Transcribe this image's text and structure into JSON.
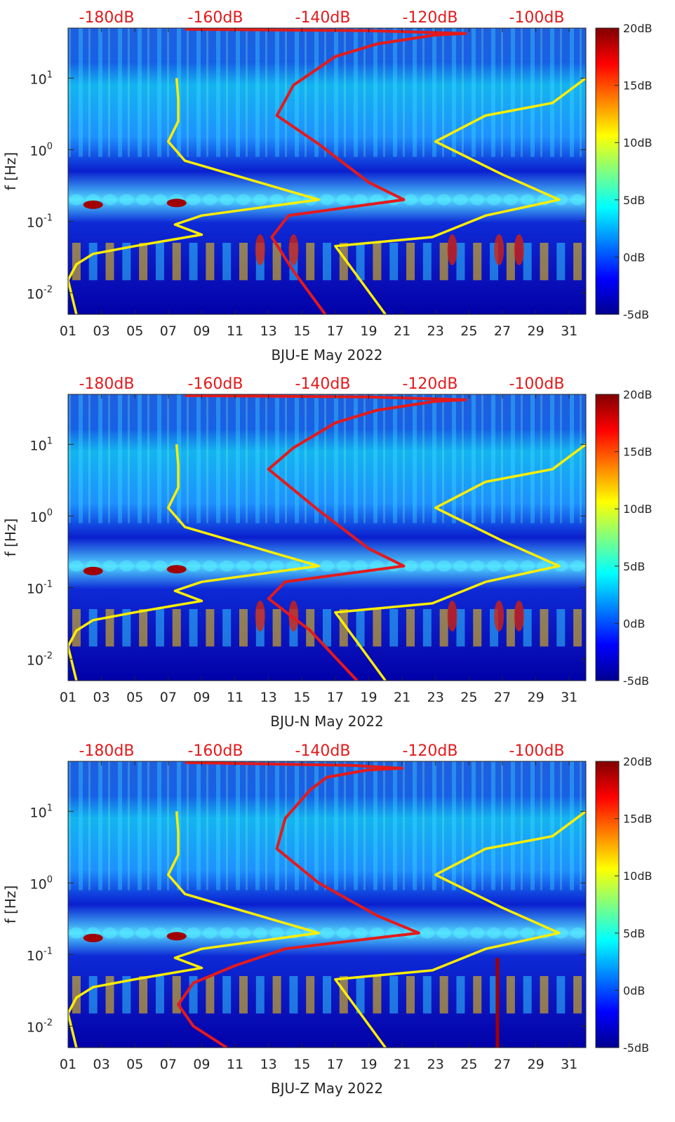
{
  "chart_data": [
    {
      "type": "heatmap",
      "title": "",
      "xlabel": "BJU-E May 2022",
      "ylabel": "f [Hz]",
      "xlim": [
        1,
        32
      ],
      "ylim": [
        0.005,
        50
      ],
      "yscale": "log",
      "xticks": [
        "01",
        "03",
        "05",
        "07",
        "09",
        "11",
        "13",
        "15",
        "17",
        "19",
        "21",
        "23",
        "25",
        "27",
        "29",
        "31"
      ],
      "yticks": [
        {
          "value": 0.01,
          "base": "10",
          "exp": "-2"
        },
        {
          "value": 0.1,
          "base": "10",
          "exp": "-1"
        },
        {
          "value": 1,
          "base": "10",
          "exp": "0"
        },
        {
          "value": 10,
          "base": "10",
          "exp": "1"
        }
      ],
      "top_axis_labels": [
        "-180dB",
        "-160dB",
        "-140dB",
        "-120dB",
        "-100dB"
      ],
      "colorbar": {
        "labels": [
          "20dB",
          "15dB",
          "10dB",
          "5dB",
          "0dB",
          "-5dB"
        ],
        "range": [
          -5,
          20
        ]
      },
      "series": [
        {
          "name": "red-psd-curve",
          "color": "#e31a1c",
          "points": [
            [
              16.4,
              0.005
            ],
            [
              14.5,
              0.02
            ],
            [
              13.2,
              0.06
            ],
            [
              14.2,
              0.12
            ],
            [
              21.1,
              0.2
            ],
            [
              19.0,
              0.35
            ],
            [
              16.0,
              1.2
            ],
            [
              13.5,
              3.0
            ],
            [
              14.5,
              8.0
            ],
            [
              17.0,
              20
            ],
            [
              19.5,
              30
            ],
            [
              23.0,
              40
            ],
            [
              24.8,
              42
            ],
            [
              19.0,
              46
            ],
            [
              8.0,
              48
            ]
          ]
        },
        {
          "name": "yellow-low-noise-model",
          "color": "#ffee00",
          "points": [
            [
              1.5,
              0.005
            ],
            [
              1.0,
              0.015
            ],
            [
              1.5,
              0.025
            ],
            [
              2.5,
              0.035
            ],
            [
              5.0,
              0.045
            ],
            [
              9.0,
              0.065
            ],
            [
              7.4,
              0.09
            ],
            [
              9.0,
              0.12
            ],
            [
              16.0,
              0.2
            ],
            [
              8.0,
              0.7
            ],
            [
              7.0,
              1.3
            ],
            [
              7.6,
              2.5
            ],
            [
              7.6,
              5.0
            ],
            [
              7.5,
              10.0
            ]
          ]
        },
        {
          "name": "yellow-high-noise-model",
          "color": "#ffee00",
          "points": [
            [
              20.0,
              0.005
            ],
            [
              17.0,
              0.045
            ],
            [
              22.8,
              0.06
            ],
            [
              26.0,
              0.12
            ],
            [
              30.4,
              0.2
            ],
            [
              27.0,
              0.45
            ],
            [
              23.0,
              1.3
            ],
            [
              26.0,
              3.0
            ],
            [
              30.0,
              4.5
            ],
            [
              32.0,
              10.0
            ]
          ]
        }
      ]
    },
    {
      "type": "heatmap",
      "title": "",
      "xlabel": "BJU-N May 2022",
      "ylabel": "f [Hz]",
      "xlim": [
        1,
        32
      ],
      "ylim": [
        0.005,
        50
      ],
      "yscale": "log",
      "xticks": [
        "01",
        "03",
        "05",
        "07",
        "09",
        "11",
        "13",
        "15",
        "17",
        "19",
        "21",
        "23",
        "25",
        "27",
        "29",
        "31"
      ],
      "yticks": [
        {
          "value": 0.01,
          "base": "10",
          "exp": "-2"
        },
        {
          "value": 0.1,
          "base": "10",
          "exp": "-1"
        },
        {
          "value": 1,
          "base": "10",
          "exp": "0"
        },
        {
          "value": 10,
          "base": "10",
          "exp": "1"
        }
      ],
      "top_axis_labels": [
        "-180dB",
        "-160dB",
        "-140dB",
        "-120dB",
        "-100dB"
      ],
      "colorbar": {
        "labels": [
          "20dB",
          "15dB",
          "10dB",
          "5dB",
          "0dB",
          "-5dB"
        ],
        "range": [
          -5,
          20
        ]
      },
      "series": [
        {
          "name": "red-psd-curve",
          "color": "#e31a1c",
          "points": [
            [
              18.3,
              0.005
            ],
            [
              15.5,
              0.025
            ],
            [
              13.0,
              0.07
            ],
            [
              14.0,
              0.12
            ],
            [
              21.1,
              0.2
            ],
            [
              19.0,
              0.35
            ],
            [
              16.0,
              1.2
            ],
            [
              13.0,
              4.5
            ],
            [
              14.5,
              9.0
            ],
            [
              17.0,
              20
            ],
            [
              19.5,
              30
            ],
            [
              23.0,
              40
            ],
            [
              24.8,
              42
            ],
            [
              19.0,
              46
            ],
            [
              8.0,
              48
            ]
          ]
        },
        {
          "name": "yellow-low-noise-model",
          "color": "#ffee00",
          "points": [
            [
              1.5,
              0.005
            ],
            [
              1.0,
              0.015
            ],
            [
              1.5,
              0.025
            ],
            [
              2.5,
              0.035
            ],
            [
              5.0,
              0.045
            ],
            [
              9.0,
              0.065
            ],
            [
              7.4,
              0.09
            ],
            [
              9.0,
              0.12
            ],
            [
              16.0,
              0.2
            ],
            [
              8.0,
              0.7
            ],
            [
              7.0,
              1.3
            ],
            [
              7.6,
              2.5
            ],
            [
              7.6,
              5.0
            ],
            [
              7.5,
              10.0
            ]
          ]
        },
        {
          "name": "yellow-high-noise-model",
          "color": "#ffee00",
          "points": [
            [
              20.0,
              0.005
            ],
            [
              17.0,
              0.045
            ],
            [
              22.8,
              0.06
            ],
            [
              26.0,
              0.12
            ],
            [
              30.4,
              0.2
            ],
            [
              27.0,
              0.45
            ],
            [
              23.0,
              1.3
            ],
            [
              26.0,
              3.0
            ],
            [
              30.0,
              4.5
            ],
            [
              32.0,
              10.0
            ]
          ]
        }
      ]
    },
    {
      "type": "heatmap",
      "title": "",
      "xlabel": "BJU-Z May 2022",
      "ylabel": "f [Hz]",
      "xlim": [
        1,
        32
      ],
      "ylim": [
        0.005,
        50
      ],
      "yscale": "log",
      "xticks": [
        "01",
        "03",
        "05",
        "07",
        "09",
        "11",
        "13",
        "15",
        "17",
        "19",
        "21",
        "23",
        "25",
        "27",
        "29",
        "31"
      ],
      "yticks": [
        {
          "value": 0.01,
          "base": "10",
          "exp": "-2"
        },
        {
          "value": 0.1,
          "base": "10",
          "exp": "-1"
        },
        {
          "value": 1,
          "base": "10",
          "exp": "0"
        },
        {
          "value": 10,
          "base": "10",
          "exp": "1"
        }
      ],
      "top_axis_labels": [
        "-180dB",
        "-160dB",
        "-140dB",
        "-120dB",
        "-100dB"
      ],
      "colorbar": {
        "labels": [
          "20dB",
          "15dB",
          "10dB",
          "5dB",
          "0dB",
          "-5dB"
        ],
        "range": [
          -5,
          20
        ]
      },
      "series": [
        {
          "name": "red-psd-curve",
          "color": "#e31a1c",
          "points": [
            [
              10.5,
              0.005
            ],
            [
              8.5,
              0.01
            ],
            [
              7.6,
              0.02
            ],
            [
              8.5,
              0.04
            ],
            [
              11.0,
              0.07
            ],
            [
              14.0,
              0.12
            ],
            [
              22.0,
              0.2
            ],
            [
              19.5,
              0.35
            ],
            [
              16.0,
              1.0
            ],
            [
              13.5,
              3.0
            ],
            [
              14.0,
              8.0
            ],
            [
              15.5,
              20
            ],
            [
              16.5,
              30
            ],
            [
              19.0,
              38
            ],
            [
              21.0,
              40
            ],
            [
              18.0,
              44
            ],
            [
              8.0,
              48
            ]
          ]
        },
        {
          "name": "yellow-low-noise-model",
          "color": "#ffee00",
          "points": [
            [
              1.5,
              0.005
            ],
            [
              1.0,
              0.015
            ],
            [
              1.5,
              0.025
            ],
            [
              2.5,
              0.035
            ],
            [
              5.0,
              0.045
            ],
            [
              9.0,
              0.065
            ],
            [
              7.4,
              0.09
            ],
            [
              9.0,
              0.12
            ],
            [
              16.0,
              0.2
            ],
            [
              8.0,
              0.7
            ],
            [
              7.0,
              1.3
            ],
            [
              7.6,
              2.5
            ],
            [
              7.6,
              5.0
            ],
            [
              7.5,
              10.0
            ]
          ]
        },
        {
          "name": "yellow-high-noise-model",
          "color": "#ffee00",
          "points": [
            [
              20.0,
              0.005
            ],
            [
              17.0,
              0.045
            ],
            [
              22.8,
              0.06
            ],
            [
              26.0,
              0.12
            ],
            [
              30.4,
              0.2
            ],
            [
              27.0,
              0.45
            ],
            [
              23.0,
              1.3
            ],
            [
              26.0,
              3.0
            ],
            [
              30.0,
              4.5
            ],
            [
              32.0,
              10.0
            ]
          ]
        }
      ]
    }
  ]
}
